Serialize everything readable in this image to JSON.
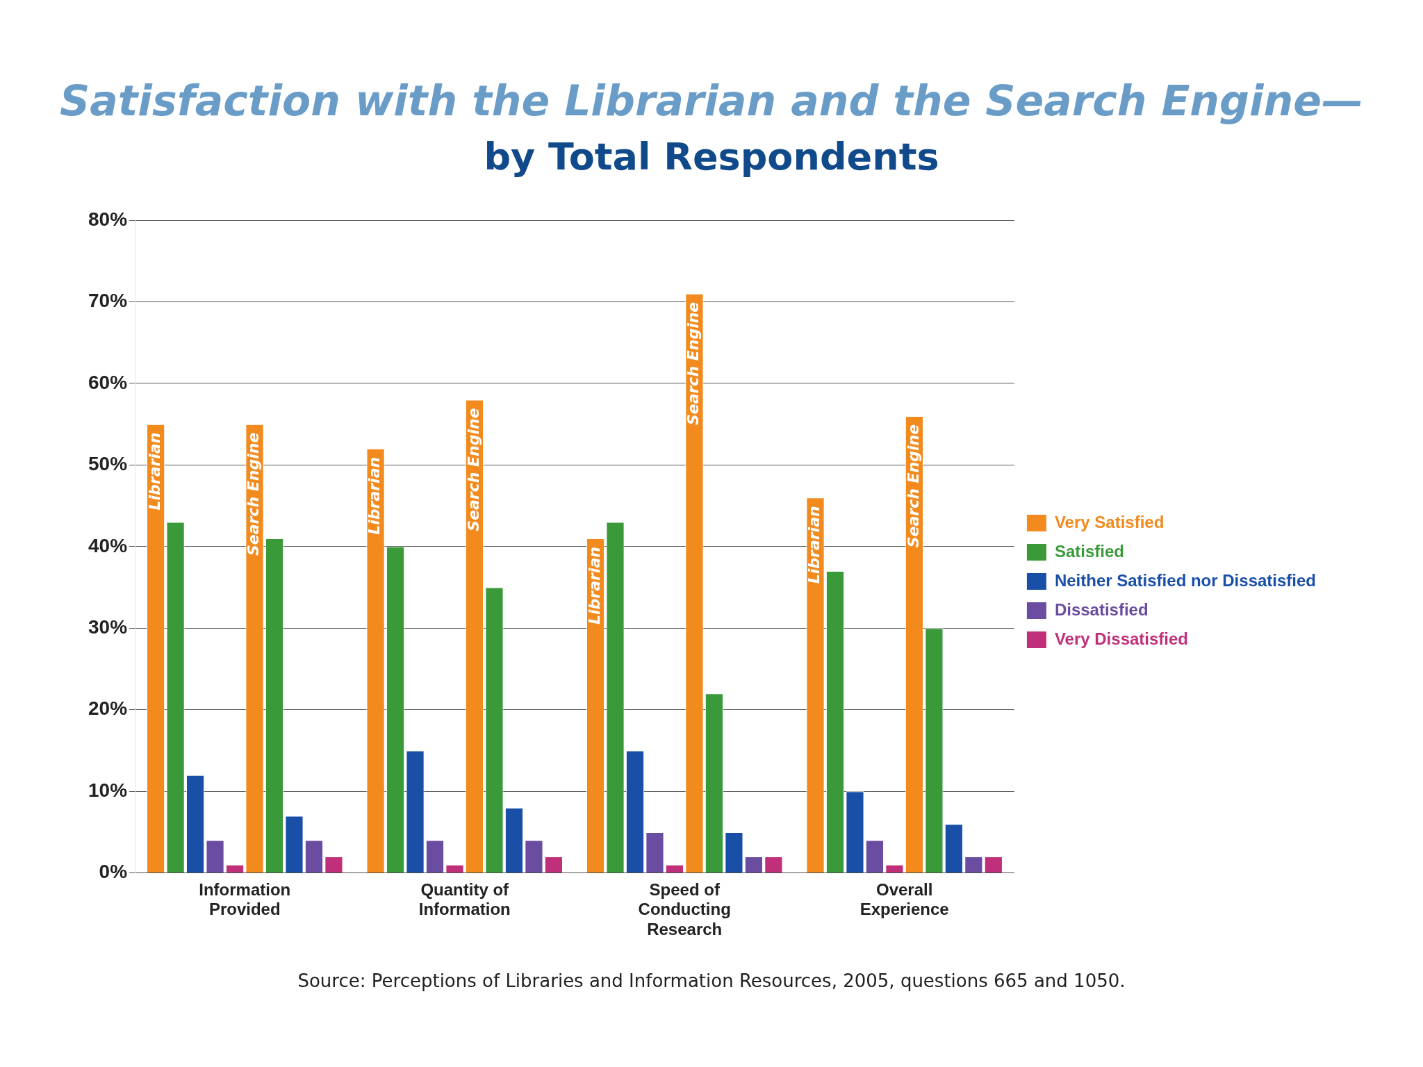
{
  "chart_data": {
    "type": "bar",
    "title": "Satisfaction with the Librarian and the Search Engine—",
    "subtitle": "by Total Respondents",
    "categories": [
      "Information Provided",
      "Quantity of Information",
      "Speed of Conducting Research",
      "Overall Experience"
    ],
    "series": [
      {
        "name": "Very Satisfied",
        "color": "#f28a1e",
        "values": [
          55,
          52,
          41,
          46
        ],
        "value_labels": [
          "Librarian",
          "Librarian",
          "Librarian",
          "Librarian"
        ]
      },
      {
        "name": "Satisfied",
        "color": "#3a9a3a",
        "values": [
          43,
          40,
          43,
          37
        ]
      },
      {
        "name": "Neither Satisfied nor Dissatisfied",
        "color": "#1a4fa8",
        "values": [
          12,
          15,
          15,
          10
        ]
      },
      {
        "name": "Dissatisfied",
        "color": "#6a4ca0",
        "values": [
          4,
          4,
          5,
          4
        ]
      },
      {
        "name": "Very Dissatisfied",
        "color": "#c0307a",
        "values": [
          1,
          1,
          1,
          1
        ]
      },
      {
        "color": "#f28a1e",
        "values": [
          55,
          58,
          71,
          56
        ],
        "value_labels": [
          "Search Engine",
          "Search Engine",
          "Search Engine",
          "Search Engine"
        ]
      },
      {
        "color": "#3a9a3a",
        "values": [
          41,
          35,
          22,
          30
        ]
      },
      {
        "color": "#1a4fa8",
        "values": [
          7,
          8,
          5,
          6
        ]
      },
      {
        "color": "#6a4ca0",
        "values": [
          4,
          4,
          2,
          2
        ]
      },
      {
        "color": "#c0307a",
        "values": [
          2,
          2,
          2,
          2
        ]
      }
    ],
    "ylim": [
      0,
      80
    ],
    "yticks": [
      {
        "value": 0,
        "label": "0%"
      },
      {
        "value": 10,
        "label": "10%"
      },
      {
        "value": 20,
        "label": "20%"
      },
      {
        "value": 30,
        "label": "30%"
      },
      {
        "value": 40,
        "label": "40%"
      },
      {
        "value": 50,
        "label": "50%"
      },
      {
        "value": 60,
        "label": "60%"
      },
      {
        "value": 70,
        "label": "70%"
      },
      {
        "value": 80,
        "label": "80%"
      }
    ],
    "grid": "y",
    "legend": "right",
    "annotations": [
      "Source: Perceptions of Libraries and Information Resources, 2005, questions 665 and 1050."
    ]
  }
}
